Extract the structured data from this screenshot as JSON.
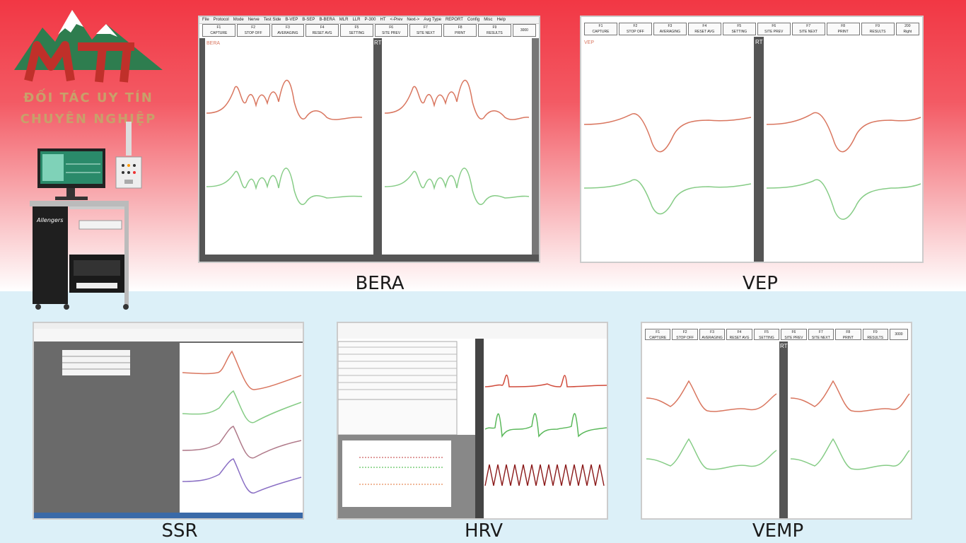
{
  "brand": {
    "tagline_line1": "ĐỐI TÁC UY TÍN",
    "tagline_line2": "CHUYÊN NGHIỆP",
    "device_label": "Allengers"
  },
  "colors": {
    "top_red": "#f23744",
    "bottom_blue": "#dcf0f8",
    "trace_red": "#d9765f",
    "trace_green": "#86cc86",
    "trace_purple": "#8a6fc4",
    "trace_dark_red": "#8b1a1a"
  },
  "menu": [
    "File",
    "Protocol",
    "Mode",
    "Nerve",
    "Test Side",
    "B-VEP",
    "B-SEP",
    "B-BERA",
    "MLR",
    "LLR",
    "P-300",
    "HT",
    "<-Prev",
    "Next->",
    "Avg Type",
    "REPORT",
    "Config",
    "Misc",
    "Help"
  ],
  "fkeys": [
    {
      "key": "F1",
      "label": "CAPTURE"
    },
    {
      "key": "F2",
      "label": "STOP OFF"
    },
    {
      "key": "F3",
      "label": "AVERAGING"
    },
    {
      "key": "F4",
      "label": "RESET AVG"
    },
    {
      "key": "F5",
      "label": "SETTING"
    },
    {
      "key": "F6",
      "label": "SITE PREV"
    },
    {
      "key": "F7",
      "label": "SITE NEXT"
    },
    {
      "key": "F8",
      "label": "PRINT"
    },
    {
      "key": "F9",
      "label": "RESULTS"
    }
  ],
  "panels": {
    "bera": {
      "caption": "BERA",
      "side_tag": "RT",
      "tag": "BERA",
      "value": "3000"
    },
    "vep": {
      "caption": "VEP",
      "side_tag": "RT",
      "tag": "VEP",
      "value": "200",
      "right": "Right"
    },
    "ssr": {
      "caption": "SSR"
    },
    "hrv": {
      "caption": "HRV"
    },
    "vemp": {
      "caption": "VEMP",
      "side_tag": "RT",
      "value": "3000"
    }
  }
}
